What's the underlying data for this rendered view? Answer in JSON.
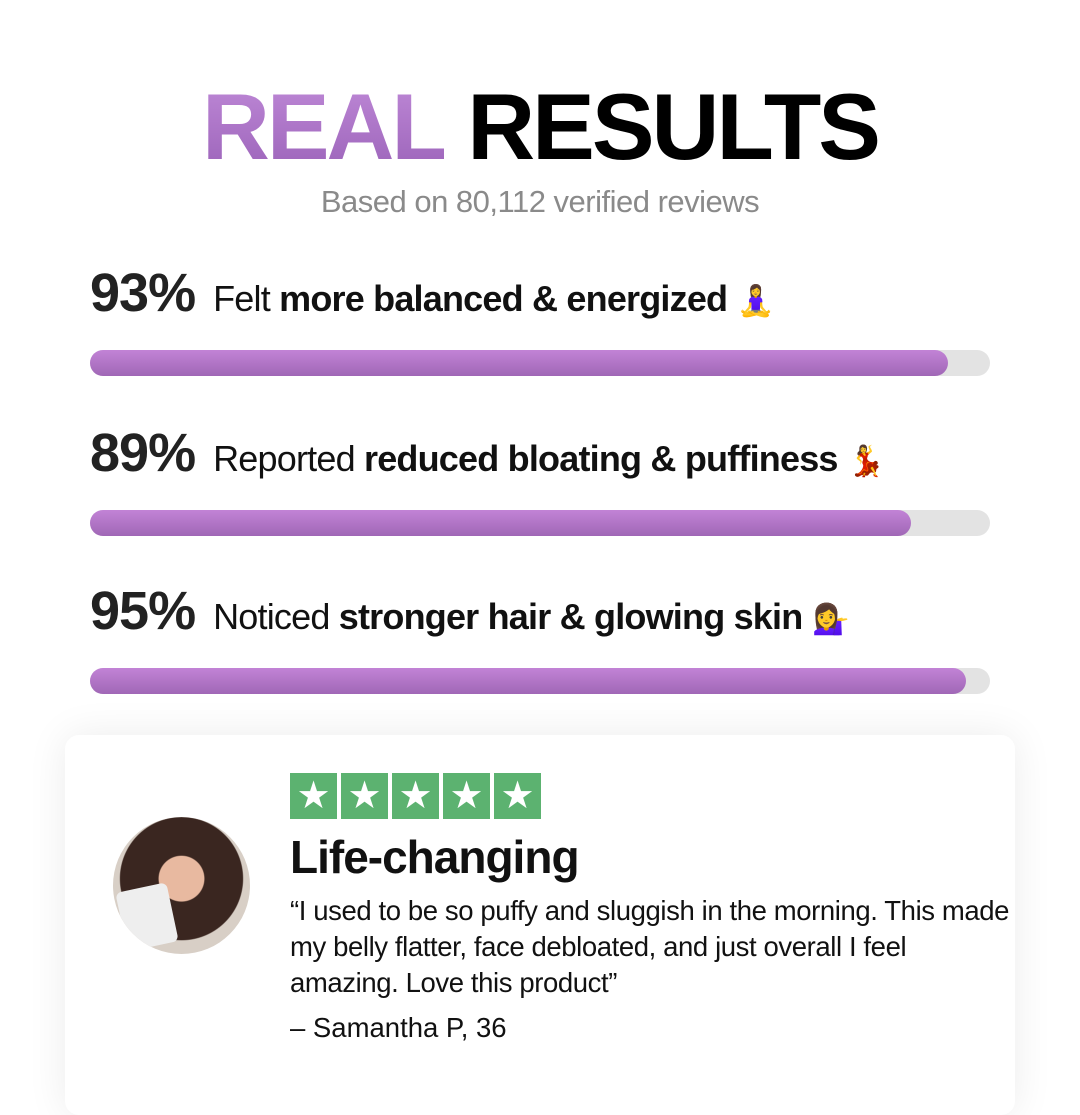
{
  "header": {
    "title_accent": "REAL",
    "title_main": "RESULTS",
    "subtitle": "Based on 80,112 verified reviews",
    "accent_color": "#b57dce"
  },
  "stats": [
    {
      "percent": "93%",
      "value": 93,
      "prefix": "Felt",
      "bold": "more balanced & energized",
      "emoji": "🧘‍♀️"
    },
    {
      "percent": "89%",
      "value": 89,
      "prefix": "Reported",
      "bold": "reduced bloating & puffiness",
      "emoji": "💃"
    },
    {
      "percent": "95%",
      "value": 95,
      "prefix": "Noticed",
      "bold": "stronger hair & glowing skin",
      "emoji": "💁‍♀️"
    }
  ],
  "review": {
    "rating": 5,
    "star_color": "#5cb270",
    "title": "Life-changing",
    "quote": "“I used to be so puffy and sluggish in the morning. This made my belly flatter, face debloated, and just overall I feel amazing. Love this product”",
    "author": "– Samantha P, 36"
  }
}
